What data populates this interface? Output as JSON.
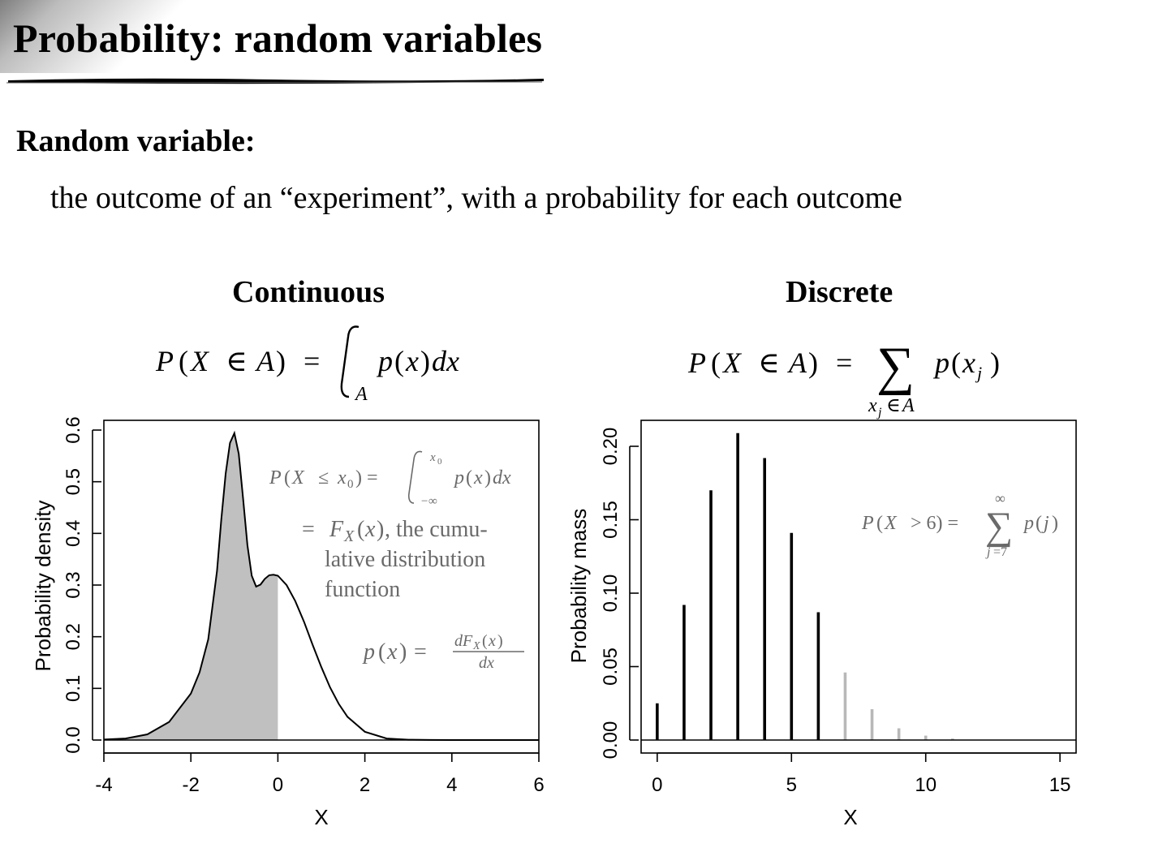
{
  "slide": {
    "title": "Probability: random variables",
    "section": "Random variable:",
    "definition": "the outcome of an “experiment”, with a probability for each outcome"
  },
  "continuous": {
    "heading": "Continuous",
    "formula": "P(X ∈ A) = ∫_A p(x)dx",
    "annotations": {
      "cdf_formula": "P(X ≤ x₀) = ∫_{−∞}^{x₀} p(x)dx",
      "cdf_line1": ", the cumu-",
      "cdf_line2": "lative distribution",
      "cdf_line3": "function",
      "pdf_formula": "p(x) = dF_X(x)/dx"
    }
  },
  "discrete": {
    "heading": "Discrete",
    "formula": "P(X ∈ A) = Σ_{x_j ∈ A} p(x_j)",
    "annotations": {
      "tail_formula": "P(X > 6) = Σ_{j=7}^{∞} p(j)"
    }
  },
  "chart_data": [
    {
      "type": "area",
      "xlabel": "X",
      "ylabel": "Probability density",
      "xlim": [
        -4,
        6
      ],
      "ylim": [
        0,
        0.6
      ],
      "xticks": [
        "-4",
        "-2",
        "0",
        "2",
        "4",
        "6"
      ],
      "yticks": [
        "0.0",
        "0.1",
        "0.2",
        "0.3",
        "0.4",
        "0.5",
        "0.6"
      ],
      "shaded_upto_x": 0,
      "density": {
        "x": [
          -4,
          -3.5,
          -3,
          -2.5,
          -2,
          -1.8,
          -1.6,
          -1.4,
          -1.3,
          -1.2,
          -1.1,
          -1.0,
          -0.9,
          -0.8,
          -0.7,
          -0.6,
          -0.5,
          -0.4,
          -0.3,
          -0.2,
          -0.1,
          0,
          0.2,
          0.4,
          0.6,
          0.8,
          1.0,
          1.2,
          1.4,
          1.6,
          2.0,
          2.5,
          3.0,
          3.5,
          4.0,
          5.0,
          6.0
        ],
        "y": [
          0.001,
          0.003,
          0.011,
          0.035,
          0.09,
          0.131,
          0.195,
          0.327,
          0.427,
          0.516,
          0.575,
          0.594,
          0.554,
          0.468,
          0.377,
          0.318,
          0.297,
          0.301,
          0.312,
          0.319,
          0.32,
          0.318,
          0.3,
          0.269,
          0.229,
          0.184,
          0.141,
          0.102,
          0.07,
          0.045,
          0.016,
          0.003,
          0.0006,
          0.0001,
          2e-05,
          0,
          0
        ]
      }
    },
    {
      "type": "bar",
      "xlabel": "X",
      "ylabel": "Probability mass",
      "xlim": [
        -0.6,
        15.6
      ],
      "ylim": [
        0,
        0.21
      ],
      "xticks": [
        "0",
        "5",
        "10",
        "15"
      ],
      "yticks": [
        "0.00",
        "0.05",
        "0.10",
        "0.15",
        "0.20"
      ],
      "x": [
        0,
        1,
        2,
        3,
        4,
        5,
        6,
        7,
        8,
        9,
        10,
        11
      ],
      "values": [
        0.025,
        0.092,
        0.17,
        0.209,
        0.192,
        0.141,
        0.087,
        0.046,
        0.021,
        0.008,
        0.003,
        0.001
      ],
      "highlight_from_x": 7,
      "colors": {
        "main": "#000000",
        "tail": "#b8b8b8"
      }
    }
  ],
  "colors": {
    "shade": "#c0c0c0",
    "annotation": "#6a6a6a"
  }
}
